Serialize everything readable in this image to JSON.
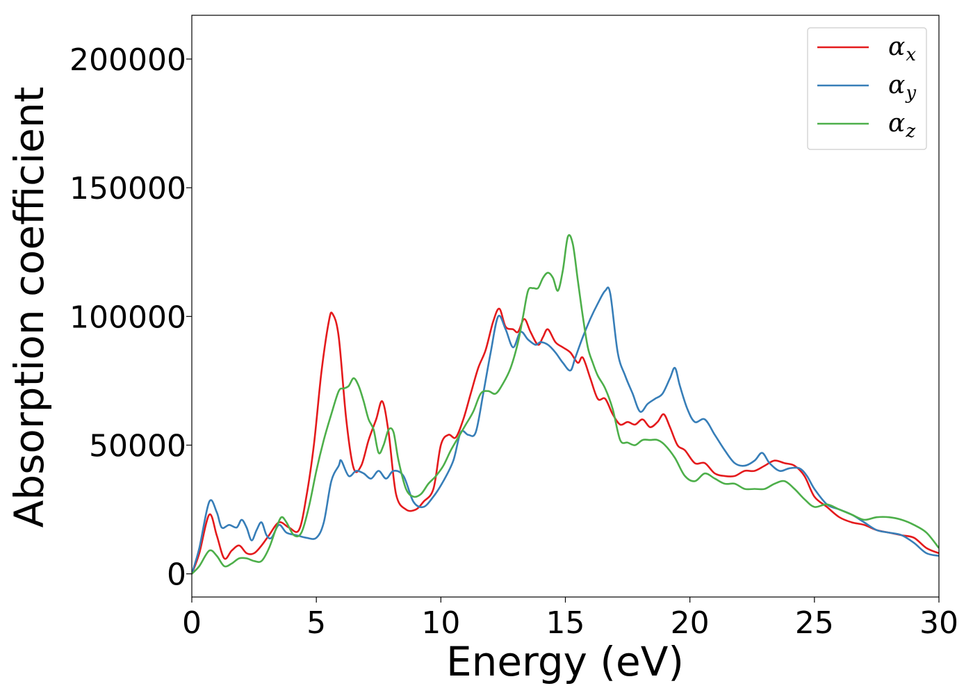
{
  "chart_data": {
    "type": "line",
    "xlabel": "Energy (eV)",
    "ylabel": "Absorption coefficient",
    "xlim": [
      0,
      30
    ],
    "ylim": [
      -9000,
      217000
    ],
    "xticks": [
      0,
      5,
      10,
      15,
      20,
      25,
      30
    ],
    "yticks": [
      0,
      50000,
      100000,
      150000,
      200000
    ],
    "xtick_labels": [
      "0",
      "5",
      "10",
      "15",
      "20",
      "25",
      "30"
    ],
    "ytick_labels": [
      "0",
      "50000",
      "100000",
      "150000",
      "200000"
    ],
    "grid": false,
    "legend_position": "top-right",
    "series": [
      {
        "name": "α",
        "subscript": "x",
        "color": "#e41a1c",
        "x": [
          0,
          0.3,
          0.7,
          1.0,
          1.3,
          1.6,
          1.9,
          2.2,
          2.5,
          2.8,
          3.1,
          3.5,
          3.9,
          4.3,
          4.6,
          4.9,
          5.2,
          5.5,
          5.65,
          5.9,
          6.2,
          6.5,
          6.8,
          7.1,
          7.4,
          7.65,
          7.9,
          8.2,
          8.6,
          9.0,
          9.3,
          9.7,
          10.0,
          10.3,
          10.6,
          10.9,
          11.2,
          11.5,
          11.8,
          12.1,
          12.35,
          12.6,
          12.9,
          13.1,
          13.35,
          13.6,
          13.9,
          14.1,
          14.3,
          14.6,
          14.9,
          15.2,
          15.5,
          15.7,
          16.0,
          16.3,
          16.6,
          16.9,
          17.2,
          17.5,
          17.8,
          18.1,
          18.4,
          18.7,
          18.95,
          19.2,
          19.5,
          19.8,
          20.2,
          20.6,
          21.0,
          21.4,
          21.8,
          22.2,
          22.6,
          23.0,
          23.4,
          23.8,
          24.2,
          24.6,
          25.0,
          25.5,
          26.0,
          26.5,
          27.0,
          27.5,
          28.0,
          28.5,
          29.0,
          29.5,
          30.0
        ],
        "y": [
          0,
          8000,
          23000,
          15000,
          6000,
          9000,
          11000,
          8000,
          8000,
          11000,
          15000,
          20000,
          18000,
          17000,
          30000,
          50000,
          78000,
          98000,
          101000,
          92000,
          60000,
          41000,
          42000,
          52000,
          60000,
          67000,
          55000,
          31000,
          25000,
          25000,
          28000,
          33000,
          50000,
          54000,
          53000,
          60000,
          70000,
          80000,
          87000,
          98000,
          103000,
          96000,
          95000,
          94000,
          99000,
          94000,
          89000,
          92000,
          95000,
          90000,
          88000,
          86000,
          82000,
          84000,
          76000,
          68000,
          68000,
          62000,
          58000,
          59000,
          58000,
          60000,
          57000,
          59000,
          62000,
          57000,
          50000,
          48000,
          43000,
          43000,
          39000,
          38000,
          38000,
          40000,
          40000,
          42000,
          44000,
          43000,
          42000,
          38000,
          30000,
          26000,
          22000,
          20000,
          19000,
          17000,
          16000,
          15000,
          14000,
          10000,
          8000
        ]
      },
      {
        "name": "α",
        "subscript": "y",
        "color": "#377eb8",
        "x": [
          0,
          0.3,
          0.7,
          1.0,
          1.2,
          1.5,
          1.8,
          2.0,
          2.2,
          2.4,
          2.6,
          2.8,
          3.0,
          3.2,
          3.5,
          3.8,
          4.2,
          4.6,
          5.0,
          5.3,
          5.6,
          5.9,
          6.0,
          6.3,
          6.6,
          6.9,
          7.2,
          7.5,
          7.8,
          8.1,
          8.5,
          8.9,
          9.3,
          9.7,
          10.1,
          10.5,
          10.8,
          11.1,
          11.4,
          11.7,
          12.0,
          12.3,
          12.6,
          12.9,
          13.2,
          13.5,
          13.8,
          14.0,
          14.3,
          14.6,
          14.9,
          15.2,
          15.4,
          15.7,
          16.0,
          16.3,
          16.6,
          16.8,
          17.1,
          17.4,
          17.7,
          18.0,
          18.3,
          18.6,
          18.9,
          19.2,
          19.4,
          19.6,
          19.9,
          20.2,
          20.6,
          21.0,
          21.4,
          21.8,
          22.2,
          22.6,
          22.9,
          23.2,
          23.6,
          24.0,
          24.4,
          24.7,
          25.0,
          25.5,
          26.0,
          26.5,
          27.0,
          27.5,
          28.0,
          28.5,
          29.0,
          29.5,
          30.0
        ],
        "y": [
          0,
          10000,
          28000,
          24000,
          18000,
          19000,
          18000,
          21000,
          18000,
          13000,
          17000,
          20000,
          15000,
          14000,
          19000,
          16000,
          15000,
          14000,
          14000,
          20000,
          36000,
          42000,
          44000,
          38000,
          40000,
          39000,
          37000,
          40000,
          37000,
          40000,
          38000,
          28000,
          26000,
          30000,
          36000,
          44000,
          55000,
          54000,
          55000,
          70000,
          86000,
          100000,
          95000,
          88000,
          94000,
          91000,
          89000,
          90000,
          89000,
          86000,
          82000,
          79000,
          84000,
          92000,
          99000,
          105000,
          110000,
          109000,
          86000,
          77000,
          70000,
          63000,
          66000,
          68000,
          70000,
          76000,
          80000,
          73000,
          64000,
          59000,
          60000,
          54000,
          48000,
          43000,
          42000,
          44000,
          47000,
          43000,
          40000,
          41000,
          41000,
          38000,
          33000,
          27000,
          25000,
          23000,
          20000,
          17000,
          16000,
          15000,
          12000,
          8000,
          7000
        ]
      },
      {
        "name": "α",
        "subscript": "z",
        "color": "#4daf4a",
        "x": [
          0,
          0.3,
          0.7,
          1.0,
          1.3,
          1.6,
          1.9,
          2.2,
          2.5,
          2.8,
          3.1,
          3.4,
          3.6,
          3.8,
          4.1,
          4.4,
          4.7,
          5.0,
          5.3,
          5.6,
          5.9,
          6.1,
          6.3,
          6.5,
          6.7,
          6.9,
          7.1,
          7.3,
          7.5,
          7.7,
          7.9,
          8.1,
          8.3,
          8.6,
          8.9,
          9.2,
          9.5,
          9.8,
          10.1,
          10.4,
          10.7,
          11.0,
          11.3,
          11.6,
          11.9,
          12.2,
          12.5,
          12.8,
          13.1,
          13.3,
          13.5,
          13.7,
          13.9,
          14.1,
          14.3,
          14.5,
          14.7,
          14.9,
          15.1,
          15.3,
          15.5,
          15.7,
          15.9,
          16.1,
          16.3,
          16.6,
          16.9,
          17.2,
          17.5,
          17.8,
          18.1,
          18.4,
          18.7,
          19.0,
          19.4,
          19.8,
          20.2,
          20.6,
          21.0,
          21.4,
          21.8,
          22.2,
          22.6,
          23.0,
          23.4,
          23.8,
          24.2,
          24.6,
          25.0,
          25.5,
          26.0,
          26.5,
          27.0,
          27.5,
          28.0,
          28.5,
          29.0,
          29.5,
          30.0
        ],
        "y": [
          0,
          3000,
          9000,
          7000,
          3000,
          4000,
          6000,
          6000,
          5000,
          5000,
          10000,
          18000,
          22000,
          20000,
          15000,
          16000,
          26000,
          40000,
          52000,
          62000,
          71000,
          72000,
          73000,
          76000,
          73000,
          67000,
          60000,
          56000,
          47000,
          50000,
          56000,
          55000,
          44000,
          33000,
          30000,
          31000,
          35000,
          38000,
          42000,
          48000,
          53000,
          58000,
          63000,
          70000,
          71000,
          70000,
          74000,
          80000,
          90000,
          100000,
          110000,
          111000,
          111000,
          115000,
          117000,
          115000,
          110000,
          118000,
          131000,
          128000,
          114000,
          100000,
          88000,
          82000,
          77000,
          72000,
          64000,
          52000,
          51000,
          50000,
          52000,
          52000,
          52000,
          50000,
          45000,
          38000,
          36000,
          39000,
          37000,
          35000,
          35000,
          33000,
          33000,
          33000,
          35000,
          36000,
          33000,
          29000,
          26000,
          27000,
          25000,
          23000,
          21000,
          22000,
          22000,
          21000,
          19000,
          16000,
          10000
        ]
      }
    ]
  }
}
